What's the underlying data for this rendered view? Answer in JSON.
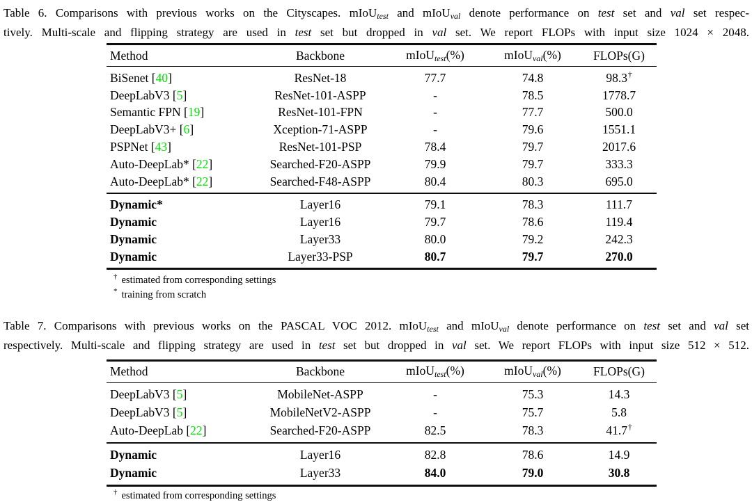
{
  "page": {
    "background": "#ffffff",
    "text_color": "#000000",
    "citation_color": "#00e400",
    "rule_color": "#0d0d0d"
  },
  "table6": {
    "caption": {
      "line1": [
        {
          "t": "Table 6. Comparisons with previous works on the Cityscapes. mIoU"
        },
        {
          "t": "test",
          "s": "sub"
        },
        {
          "t": " and mIoU"
        },
        {
          "t": "val",
          "s": "sub"
        },
        {
          "t": " denote performance on "
        },
        {
          "t": "test",
          "s": "i"
        },
        {
          "t": " set and "
        },
        {
          "t": "val",
          "s": "i"
        },
        {
          "t": " set respec-"
        }
      ],
      "line2": [
        {
          "t": "tively. Multi-scale and flipping strategy are used in "
        },
        {
          "t": "test",
          "s": "i"
        },
        {
          "t": " set but dropped in "
        },
        {
          "t": "val",
          "s": "i"
        },
        {
          "t": " set. We report FLOPs with input size 1024 × 2048."
        }
      ]
    },
    "headers": [
      {
        "key": "method",
        "text": "Method"
      },
      {
        "key": "backbone",
        "text": "Backbone"
      },
      {
        "key": "miou-test",
        "pre": "mIoU",
        "sub": "test",
        "post": "(%)"
      },
      {
        "key": "miou-val",
        "pre": "mIoU",
        "sub": "val",
        "post": "(%)"
      },
      {
        "key": "flops",
        "text": "FLOPs(G)"
      }
    ],
    "groups": [
      {
        "rows": [
          {
            "method": "BiSenet",
            "cite": "40",
            "backbone": "ResNet-18",
            "miou_test": "77.7",
            "miou_val": "74.8",
            "flops": "98.3",
            "flops_sup": "†",
            "bold_method": false,
            "bold_values": false
          },
          {
            "method": "DeepLabV3",
            "cite": "5",
            "backbone": "ResNet-101-ASPP",
            "miou_test": "-",
            "miou_val": "78.5",
            "flops": "1778.7",
            "flops_sup": "",
            "bold_method": false,
            "bold_values": false
          },
          {
            "method": "Semantic FPN",
            "cite": "19",
            "backbone": "ResNet-101-FPN",
            "miou_test": "-",
            "miou_val": "77.7",
            "flops": "500.0",
            "flops_sup": "",
            "bold_method": false,
            "bold_values": false
          },
          {
            "method": "DeepLabV3+",
            "cite": "6",
            "backbone": "Xception-71-ASPP",
            "miou_test": "-",
            "miou_val": "79.6",
            "flops": "1551.1",
            "flops_sup": "",
            "bold_method": false,
            "bold_values": false
          },
          {
            "method": "PSPNet",
            "cite": "43",
            "backbone": "ResNet-101-PSP",
            "miou_test": "78.4",
            "miou_val": "79.7",
            "flops": "2017.6",
            "flops_sup": "",
            "bold_method": false,
            "bold_values": false
          },
          {
            "method": "Auto-DeepLab*",
            "cite": "22",
            "backbone": "Searched-F20-ASPP",
            "miou_test": "79.9",
            "miou_val": "79.7",
            "flops": "333.3",
            "flops_sup": "",
            "bold_method": false,
            "bold_values": false
          },
          {
            "method": "Auto-DeepLab*",
            "cite": "22",
            "backbone": "Searched-F48-ASPP",
            "miou_test": "80.4",
            "miou_val": "80.3",
            "flops": "695.0",
            "flops_sup": "",
            "bold_method": false,
            "bold_values": false
          }
        ]
      },
      {
        "rows": [
          {
            "method": "Dynamic*",
            "cite": null,
            "backbone": "Layer16",
            "miou_test": "79.1",
            "miou_val": "78.3",
            "flops": "111.7",
            "flops_sup": "",
            "bold_method": true,
            "bold_values": false
          },
          {
            "method": "Dynamic",
            "cite": null,
            "backbone": "Layer16",
            "miou_test": "79.7",
            "miou_val": "78.6",
            "flops": "119.4",
            "flops_sup": "",
            "bold_method": true,
            "bold_values": false
          },
          {
            "method": "Dynamic",
            "cite": null,
            "backbone": "Layer33",
            "miou_test": "80.0",
            "miou_val": "79.2",
            "flops": "242.3",
            "flops_sup": "",
            "bold_method": true,
            "bold_values": false
          },
          {
            "method": "Dynamic",
            "cite": null,
            "backbone": "Layer33-PSP",
            "miou_test": "80.7",
            "miou_val": "79.7",
            "flops": "270.0",
            "flops_sup": "",
            "bold_method": true,
            "bold_values": true
          }
        ]
      }
    ],
    "footnotes": [
      {
        "marker": "†",
        "text": "estimated from corresponding settings"
      },
      {
        "marker": "*",
        "text": "training from scratch"
      }
    ]
  },
  "table7": {
    "caption": {
      "line1": [
        {
          "t": "Table 7. Comparisons with previous works on the PASCAL VOC 2012. mIoU"
        },
        {
          "t": "test",
          "s": "sub"
        },
        {
          "t": " and mIoU"
        },
        {
          "t": "val",
          "s": "sub"
        },
        {
          "t": " denote performance on "
        },
        {
          "t": "test",
          "s": "i"
        },
        {
          "t": " set and "
        },
        {
          "t": "val",
          "s": "i"
        },
        {
          "t": " set"
        }
      ],
      "line2": [
        {
          "t": "respectively. Multi-scale and flipping strategy are used in "
        },
        {
          "t": "test",
          "s": "i"
        },
        {
          "t": " set but dropped in "
        },
        {
          "t": "val",
          "s": "i"
        },
        {
          "t": " set. We report FLOPs with input size 512 × 512."
        }
      ]
    },
    "headers": [
      {
        "key": "method",
        "text": "Method"
      },
      {
        "key": "backbone",
        "text": "Backbone"
      },
      {
        "key": "miou-test",
        "pre": "mIoU",
        "sub": "test",
        "post": "(%)"
      },
      {
        "key": "miou-val",
        "pre": "mIoU",
        "sub": "val",
        "post": "(%)"
      },
      {
        "key": "flops",
        "text": "FLOPs(G)"
      }
    ],
    "groups": [
      {
        "rows": [
          {
            "method": "DeepLabV3",
            "cite": "5",
            "backbone": "MobileNet-ASPP",
            "miou_test": "-",
            "miou_val": "75.3",
            "flops": "14.3",
            "flops_sup": "",
            "bold_method": false,
            "bold_values": false
          },
          {
            "method": "DeepLabV3",
            "cite": "5",
            "backbone": "MobileNetV2-ASPP",
            "miou_test": "-",
            "miou_val": "75.7",
            "flops": "5.8",
            "flops_sup": "",
            "bold_method": false,
            "bold_values": false
          },
          {
            "method": "Auto-DeepLab",
            "cite": "22",
            "backbone": "Searched-F20-ASPP",
            "miou_test": "82.5",
            "miou_val": "78.3",
            "flops": "41.7",
            "flops_sup": "†",
            "bold_method": false,
            "bold_values": false
          }
        ]
      },
      {
        "rows": [
          {
            "method": "Dynamic",
            "cite": null,
            "backbone": "Layer16",
            "miou_test": "82.8",
            "miou_val": "78.6",
            "flops": "14.9",
            "flops_sup": "",
            "bold_method": true,
            "bold_values": false
          },
          {
            "method": "Dynamic",
            "cite": null,
            "backbone": "Layer33",
            "miou_test": "84.0",
            "miou_val": "79.0",
            "flops": "30.8",
            "flops_sup": "",
            "bold_method": true,
            "bold_values": true
          }
        ]
      }
    ],
    "footnotes": [
      {
        "marker": "†",
        "text": "estimated from corresponding settings"
      }
    ]
  }
}
